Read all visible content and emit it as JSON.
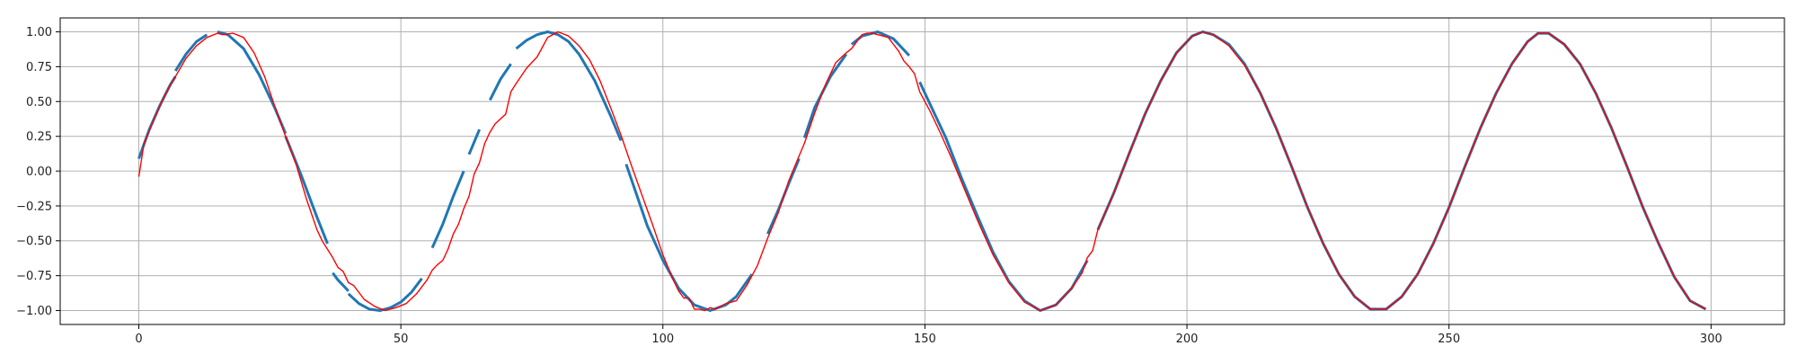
{
  "chart_data": {
    "type": "line",
    "title": "",
    "xlabel": "",
    "ylabel": "",
    "xlim": [
      -15,
      314
    ],
    "ylim": [
      -1.1,
      1.1
    ],
    "grid": true,
    "x_ticks": [
      0,
      50,
      100,
      150,
      200,
      250,
      300
    ],
    "x_tick_labels": [
      "0",
      "50",
      "100",
      "150",
      "200",
      "250",
      "300"
    ],
    "y_ticks": [
      1.0,
      0.75,
      0.5,
      0.25,
      0.0,
      -0.25,
      -0.5,
      -0.75,
      -1.0
    ],
    "y_tick_labels": [
      "1.00",
      "0.75",
      "0.50",
      "0.25",
      "0.00",
      "−0.25",
      "−0.50",
      "−0.75",
      "−1.00"
    ],
    "series": [
      {
        "color": "#1f77b4",
        "width": 3,
        "segments": [
          {
            "x": [
              0,
              2,
              4,
              6,
              7
            ],
            "y": [
              0.09,
              0.3,
              0.47,
              0.62,
              0.68
            ]
          },
          {
            "x": [
              7,
              9,
              11,
              13
            ],
            "y": [
              0.72,
              0.84,
              0.93,
              0.98
            ]
          },
          {
            "x": [
              15,
              17,
              20,
              23,
              26,
              28
            ],
            "y": [
              1.0,
              0.98,
              0.88,
              0.69,
              0.45,
              0.27
            ]
          },
          {
            "x": [
              28,
              31,
              34,
              36
            ],
            "y": [
              0.25,
              -0.03,
              -0.33,
              -0.52
            ]
          },
          {
            "x": [
              37,
              38,
              40
            ],
            "y": [
              -0.73,
              -0.78,
              -0.86
            ]
          },
          {
            "x": [
              40,
              42,
              44,
              46,
              48,
              50,
              52,
              54
            ],
            "y": [
              -0.88,
              -0.95,
              -0.99,
              -1.0,
              -0.98,
              -0.94,
              -0.87,
              -0.77
            ]
          },
          {
            "x": [
              56,
              58,
              60,
              62
            ],
            "y": [
              -0.55,
              -0.38,
              -0.18,
              0.0
            ]
          },
          {
            "x": [
              63,
              65
            ],
            "y": [
              0.12,
              0.3
            ]
          },
          {
            "x": [
              67,
              69,
              71
            ],
            "y": [
              0.51,
              0.66,
              0.77
            ]
          },
          {
            "x": [
              72,
              74,
              76,
              78,
              80,
              82,
              84,
              87,
              90,
              92
            ],
            "y": [
              0.88,
              0.94,
              0.98,
              1.0,
              0.98,
              0.93,
              0.84,
              0.65,
              0.4,
              0.22
            ]
          },
          {
            "x": [
              93,
              95,
              97,
              100,
              103,
              106,
              109,
              112,
              114,
              117
            ],
            "y": [
              0.05,
              -0.17,
              -0.39,
              -0.64,
              -0.84,
              -0.96,
              -1.0,
              -0.96,
              -0.9,
              -0.74
            ]
          },
          {
            "x": [
              120,
              122,
              124,
              126
            ],
            "y": [
              -0.45,
              -0.28,
              -0.09,
              0.09
            ]
          },
          {
            "x": [
              127,
              129,
              132,
              135
            ],
            "y": [
              0.24,
              0.46,
              0.68,
              0.84
            ]
          },
          {
            "x": [
              136,
              138,
              141,
              144,
              147
            ],
            "y": [
              0.91,
              0.97,
              1.0,
              0.95,
              0.83
            ]
          },
          {
            "x": [
              149,
              151,
              154,
              157,
              160,
              163,
              166,
              169,
              172,
              175,
              178,
              181
            ],
            "y": [
              0.64,
              0.48,
              0.24,
              -0.05,
              -0.32,
              -0.58,
              -0.79,
              -0.93,
              -1.0,
              -0.96,
              -0.84,
              -0.64
            ]
          },
          {
            "x": [
              183,
              186,
              189,
              192,
              195,
              198,
              201,
              203,
              205,
              208,
              211,
              214,
              217,
              220,
              223,
              226,
              229,
              232,
              235,
              238,
              241,
              244,
              247,
              250,
              253,
              256,
              259,
              262,
              265,
              267,
              269,
              272,
              275,
              278,
              281,
              284,
              287,
              290,
              293,
              296,
              299
            ],
            "y": [
              -0.42,
              -0.16,
              0.13,
              0.41,
              0.65,
              0.85,
              0.97,
              1.0,
              0.98,
              0.91,
              0.77,
              0.56,
              0.31,
              0.03,
              -0.26,
              -0.52,
              -0.74,
              -0.9,
              -0.99,
              -0.99,
              -0.9,
              -0.74,
              -0.52,
              -0.26,
              0.03,
              0.31,
              0.56,
              0.77,
              0.93,
              0.99,
              0.99,
              0.91,
              0.77,
              0.56,
              0.31,
              0.03,
              -0.26,
              -0.52,
              -0.76,
              -0.93,
              -0.99
            ]
          }
        ]
      },
      {
        "color": "#ff0000",
        "width": 1.4,
        "segments": [
          {
            "x": [
              0,
              1,
              3,
              5,
              7,
              9,
              11,
              13,
              15,
              16,
              18,
              20,
              22,
              24,
              26,
              28,
              30,
              32,
              34,
              35,
              37,
              38,
              39,
              40,
              41,
              43,
              45,
              47,
              49,
              51,
              53,
              55,
              56,
              57,
              58,
              59,
              60,
              61,
              62,
              63,
              64,
              65,
              66,
              67,
              68,
              70,
              71,
              72,
              74,
              76,
              78,
              80,
              82,
              84,
              86,
              88,
              90,
              92,
              94,
              96,
              98,
              100,
              102,
              103,
              104,
              105,
              106,
              107,
              108,
              109,
              110,
              111,
              112,
              114,
              116,
              118,
              120,
              122,
              124,
              126,
              127,
              129,
              131,
              133,
              135,
              136,
              137,
              138,
              139,
              140,
              141,
              142,
              143,
              144,
              145,
              146,
              147,
              148,
              149,
              151,
              153,
              155,
              157,
              160,
              163,
              166,
              169,
              172,
              175,
              178,
              180,
              181,
              182,
              183,
              186,
              189,
              192,
              195,
              198,
              201,
              203,
              205,
              208,
              211,
              214,
              217,
              220,
              223,
              226,
              229,
              232,
              235,
              238,
              241,
              244,
              247,
              250,
              253,
              256,
              259,
              262,
              265,
              267,
              269,
              272,
              275,
              278,
              281,
              284,
              287,
              290,
              293,
              296,
              299
            ],
            "y": [
              -0.04,
              0.2,
              0.38,
              0.55,
              0.68,
              0.81,
              0.9,
              0.96,
              0.99,
              0.98,
              0.99,
              0.96,
              0.85,
              0.68,
              0.46,
              0.25,
              0.05,
              -0.2,
              -0.42,
              -0.5,
              -0.62,
              -0.69,
              -0.72,
              -0.8,
              -0.82,
              -0.92,
              -0.97,
              -1.0,
              -0.98,
              -0.95,
              -0.88,
              -0.78,
              -0.71,
              -0.67,
              -0.64,
              -0.56,
              -0.45,
              -0.38,
              -0.27,
              -0.18,
              -0.02,
              0.06,
              0.2,
              0.28,
              0.34,
              0.41,
              0.57,
              0.63,
              0.74,
              0.82,
              0.96,
              1.0,
              0.97,
              0.9,
              0.8,
              0.65,
              0.46,
              0.26,
              0.04,
              -0.17,
              -0.38,
              -0.6,
              -0.78,
              -0.86,
              -0.91,
              -0.91,
              -0.99,
              -0.99,
              -1.0,
              -0.98,
              -0.99,
              -0.97,
              -0.95,
              -0.93,
              -0.82,
              -0.68,
              -0.48,
              -0.3,
              -0.07,
              0.11,
              0.2,
              0.42,
              0.62,
              0.78,
              0.85,
              0.88,
              0.93,
              0.98,
              0.99,
              0.99,
              0.98,
              0.97,
              0.96,
              0.91,
              0.86,
              0.79,
              0.75,
              0.7,
              0.57,
              0.43,
              0.27,
              0.1,
              -0.08,
              -0.35,
              -0.6,
              -0.8,
              -0.94,
              -1.0,
              -0.96,
              -0.84,
              -0.73,
              -0.62,
              -0.57,
              -0.42,
              -0.16,
              0.13,
              0.41,
              0.65,
              0.85,
              0.97,
              1.0,
              0.98,
              0.9,
              0.76,
              0.56,
              0.31,
              0.03,
              -0.26,
              -0.52,
              -0.74,
              -0.9,
              -0.99,
              -0.99,
              -0.9,
              -0.74,
              -0.52,
              -0.26,
              0.03,
              0.31,
              0.56,
              0.77,
              0.93,
              0.99,
              0.99,
              0.91,
              0.77,
              0.56,
              0.31,
              0.03,
              -0.26,
              -0.52,
              -0.76,
              -0.93,
              -0.99
            ]
          }
        ]
      }
    ]
  }
}
